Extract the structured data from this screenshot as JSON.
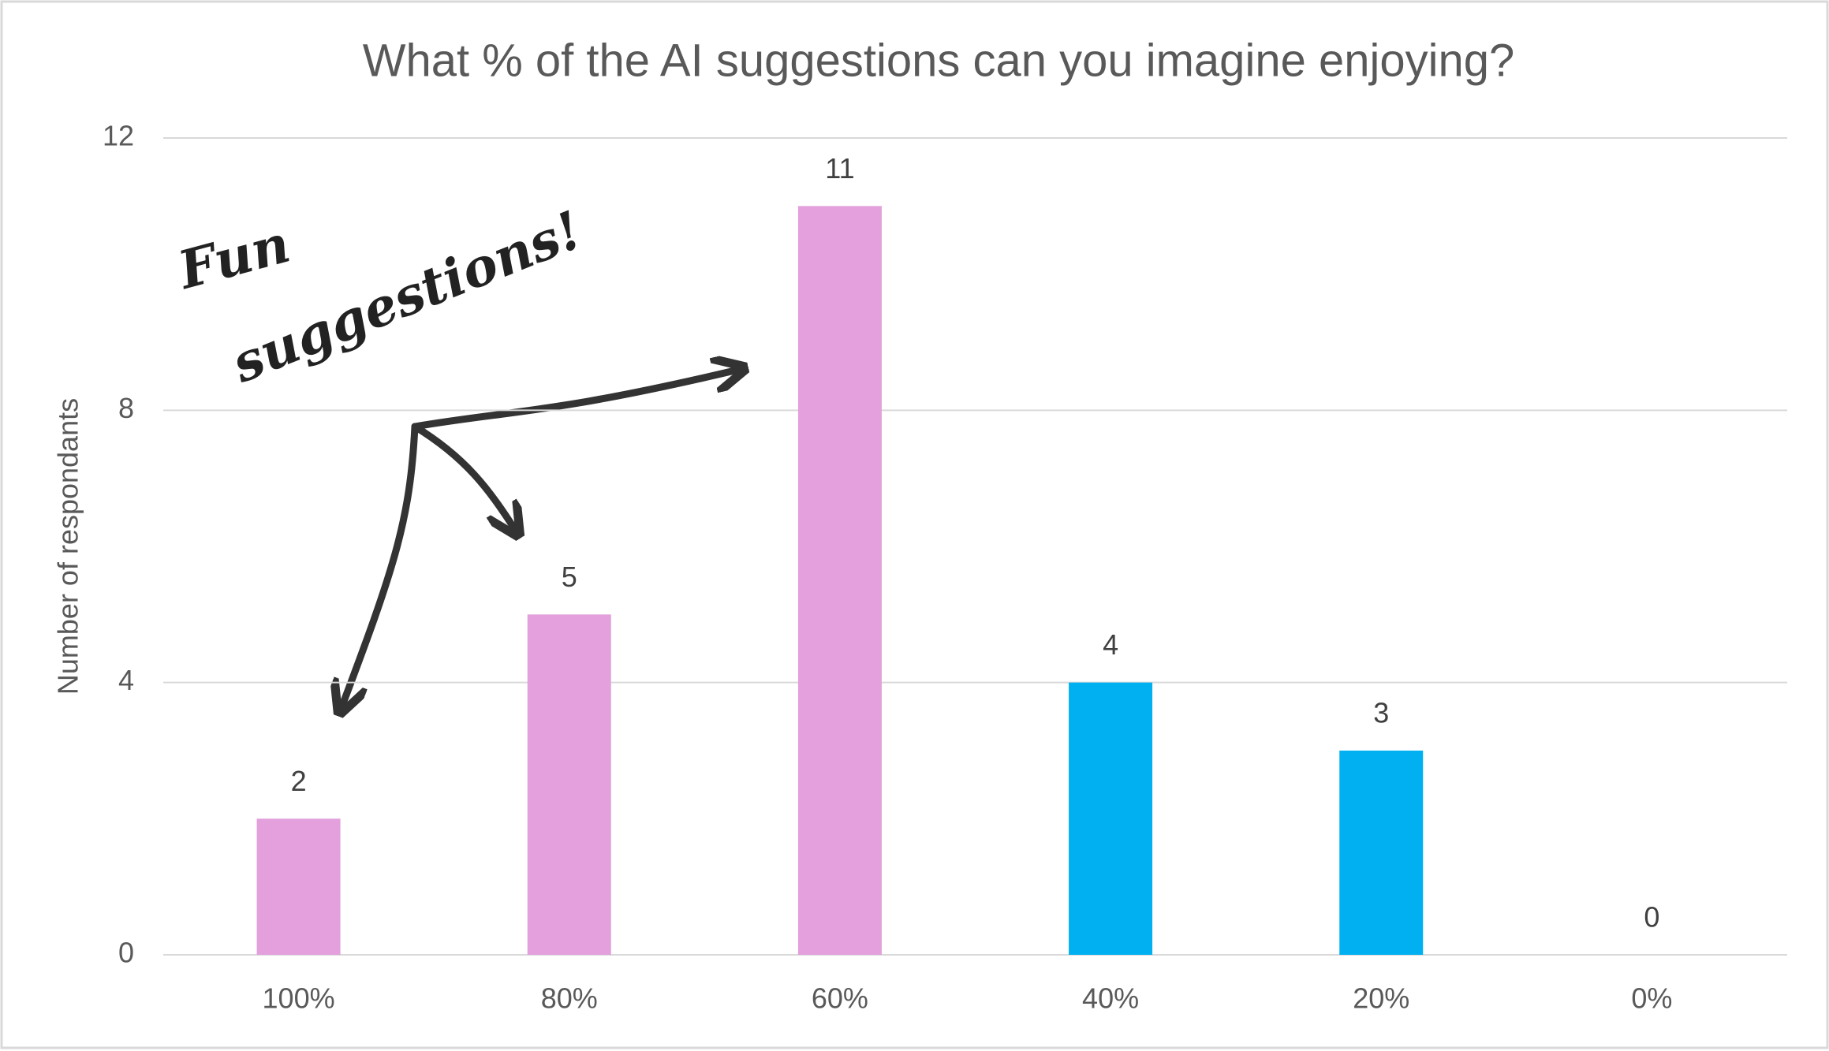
{
  "chart_data": {
    "type": "bar",
    "title": "What % of the AI suggestions can you imagine enjoying?",
    "y_label": "Number of respondants",
    "categories": [
      "100%",
      "80%",
      "60%",
      "40%",
      "20%",
      "0%"
    ],
    "values": [
      2,
      5,
      11,
      4,
      3,
      0
    ],
    "colors": [
      "#e3a0dc",
      "#e3a0dc",
      "#e3a0dc",
      "#00b0f0",
      "#00b0f0",
      "#00b0f0"
    ],
    "ylim": [
      0,
      12
    ],
    "yticks": [
      0,
      4,
      8,
      12
    ],
    "grid": true,
    "annotation": [
      "Fun",
      "suggestions!"
    ]
  }
}
